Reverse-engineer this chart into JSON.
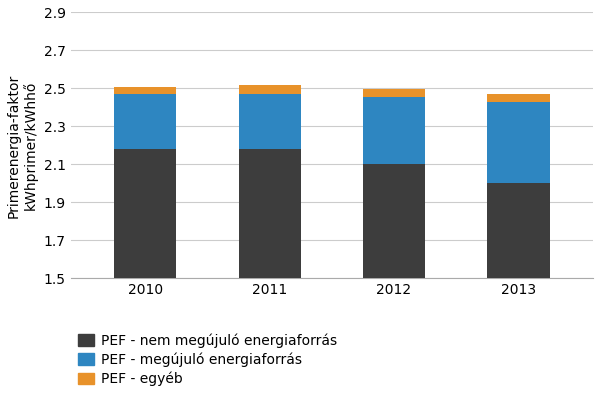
{
  "years": [
    "2010",
    "2011",
    "2012",
    "2013"
  ],
  "pef_nonrenewable": [
    2.18,
    2.18,
    2.1,
    2.0
  ],
  "pef_renewable": [
    0.29,
    0.29,
    0.355,
    0.43
  ],
  "pef_other": [
    0.04,
    0.05,
    0.04,
    0.04
  ],
  "color_nonrenewable": "#3d3d3d",
  "color_renewable": "#2e86c1",
  "color_other": "#e8922a",
  "ylabel_line1": "Primerenergia-faktor",
  "ylabel_line2": "kWhprimer/kWhhő",
  "ylim_min": 1.5,
  "ylim_max": 2.9,
  "yticks": [
    1.5,
    1.7,
    1.9,
    2.1,
    2.3,
    2.5,
    2.7,
    2.9
  ],
  "legend_nonrenewable": "PEF - nem megújuló energiaforrás",
  "legend_renewable": "PEF - megújuló energiaforrás",
  "legend_other": "PEF - egyéb",
  "bar_width": 0.5,
  "grid_color": "#cccccc",
  "background_color": "#ffffff",
  "tick_fontsize": 10,
  "legend_fontsize": 10,
  "ylabel_fontsize": 10
}
